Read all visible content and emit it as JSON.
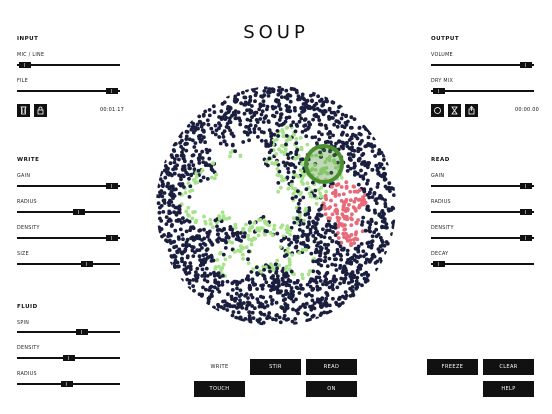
{
  "app_title": "SOUP",
  "input": {
    "title": "INPUT",
    "mic_line_label": "MIC / LINE",
    "mic_line_value": 0.02,
    "file_label": "FILE",
    "file_value": 0.98,
    "time": "00:01.17",
    "trash_icon": "trash-icon",
    "lock_icon": "lock-icon"
  },
  "output": {
    "title": "OUTPUT",
    "volume_label": "VOLUME",
    "volume_value": 0.98,
    "dry_mix_label": "DRY MIX",
    "dry_mix_value": 0.02,
    "time": "00:00.00",
    "record_icon": "record-icon",
    "hourglass_icon": "hourglass-icon",
    "share_icon": "share-icon"
  },
  "write": {
    "title": "WRITE",
    "gain_label": "GAIN",
    "gain_value": 0.98,
    "radius_label": "RADIUS",
    "radius_value": 0.62,
    "density_label": "DENSITY",
    "density_value": 0.98,
    "size_label": "SIZE",
    "size_value": 0.7
  },
  "read": {
    "title": "READ",
    "gain_label": "GAIN",
    "gain_value": 0.98,
    "radius_label": "RADIUS",
    "radius_value": 0.98,
    "density_label": "DENSITY",
    "density_value": 0.98,
    "decay_label": "DECAY",
    "decay_value": 0.02
  },
  "fluid": {
    "title": "FLUID",
    "spin_label": "SPIN",
    "spin_value": 0.65,
    "density_label": "DENSITY",
    "density_value": 0.5,
    "radius_label": "RADIUS",
    "radius_value": 0.48
  },
  "buttons": {
    "write_label": "WRITE",
    "stir": "STIR",
    "read": "READ",
    "touch": "TOUCH",
    "on": "ON",
    "freeze": "FREEZE",
    "clear": "CLEAR",
    "help": "HELP"
  },
  "colors": {
    "background": "#ffffff",
    "controls": "#111111",
    "particles": "#1b1f3f",
    "write_particles": "#a6e38a",
    "read_particles": "#e86a78",
    "cursor_ring": "#4b8f30"
  }
}
